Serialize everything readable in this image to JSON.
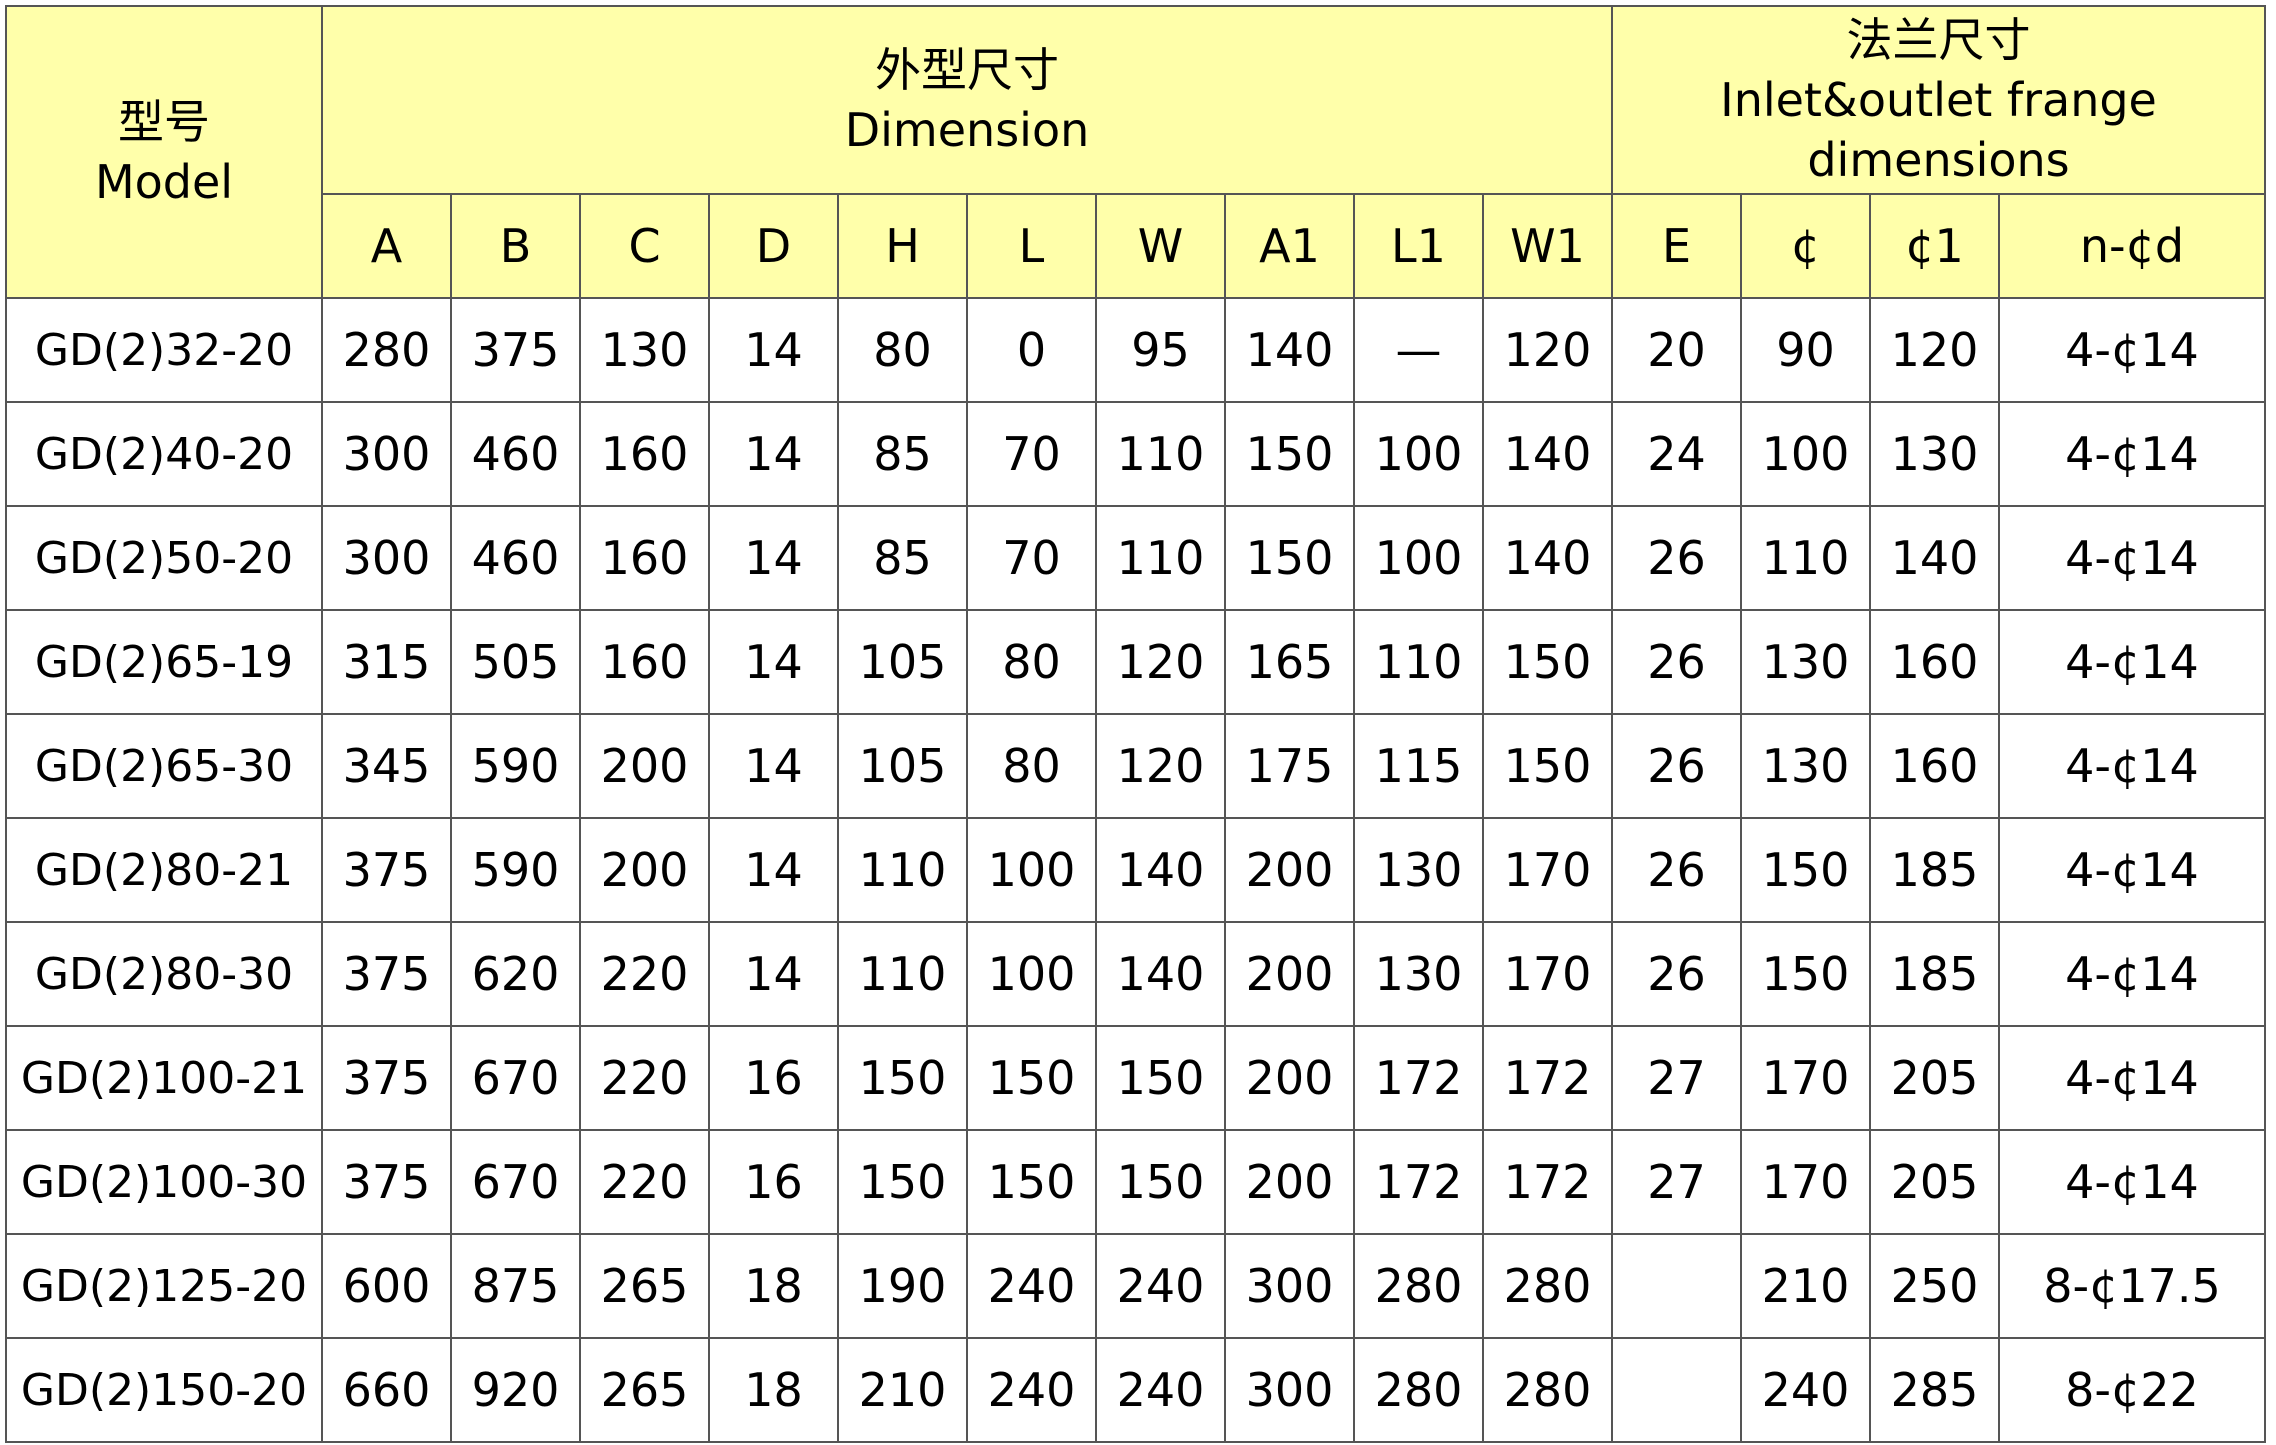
{
  "header": {
    "model_cn": "型号",
    "model_en": "Model",
    "dimension_cn": "外型尺寸",
    "dimension_en": "Dimension",
    "flange_cn": "法兰尺寸",
    "flange_en_1": "Inlet&outlet frange",
    "flange_en_2": "dimensions",
    "columns": [
      "A",
      "B",
      "C",
      "D",
      "H",
      "L",
      "W",
      "A1",
      "L1",
      "W1",
      "E",
      "¢",
      "¢1",
      "n-¢d"
    ]
  },
  "colors": {
    "header_bg": "#FFFFAA",
    "border": "#555555"
  },
  "rows": [
    [
      "GD(2)32-20",
      "280",
      "375",
      "130",
      "14",
      "80",
      "0",
      "95",
      "140",
      "—",
      "120",
      "20",
      "90",
      "120",
      "4-¢14"
    ],
    [
      "GD(2)40-20",
      "300",
      "460",
      "160",
      "14",
      "85",
      "70",
      "110",
      "150",
      "100",
      "140",
      "24",
      "100",
      "130",
      "4-¢14"
    ],
    [
      "GD(2)50-20",
      "300",
      "460",
      "160",
      "14",
      "85",
      "70",
      "110",
      "150",
      "100",
      "140",
      "26",
      "110",
      "140",
      "4-¢14"
    ],
    [
      "GD(2)65-19",
      "315",
      "505",
      "160",
      "14",
      "105",
      "80",
      "120",
      "165",
      "110",
      "150",
      "26",
      "130",
      "160",
      "4-¢14"
    ],
    [
      "GD(2)65-30",
      "345",
      "590",
      "200",
      "14",
      "105",
      "80",
      "120",
      "175",
      "115",
      "150",
      "26",
      "130",
      "160",
      "4-¢14"
    ],
    [
      "GD(2)80-21",
      "375",
      "590",
      "200",
      "14",
      "110",
      "100",
      "140",
      "200",
      "130",
      "170",
      "26",
      "150",
      "185",
      "4-¢14"
    ],
    [
      "GD(2)80-30",
      "375",
      "620",
      "220",
      "14",
      "110",
      "100",
      "140",
      "200",
      "130",
      "170",
      "26",
      "150",
      "185",
      "4-¢14"
    ],
    [
      "GD(2)100-21",
      "375",
      "670",
      "220",
      "16",
      "150",
      "150",
      "150",
      "200",
      "172",
      "172",
      "27",
      "170",
      "205",
      "4-¢14"
    ],
    [
      "GD(2)100-30",
      "375",
      "670",
      "220",
      "16",
      "150",
      "150",
      "150",
      "200",
      "172",
      "172",
      "27",
      "170",
      "205",
      "4-¢14"
    ],
    [
      "GD(2)125-20",
      "600",
      "875",
      "265",
      "18",
      "190",
      "240",
      "240",
      "300",
      "280",
      "280",
      "",
      "210",
      "250",
      "8-¢17.5"
    ],
    [
      "GD(2)150-20",
      "660",
      "920",
      "265",
      "18",
      "210",
      "240",
      "240",
      "300",
      "280",
      "280",
      "",
      "240",
      "285",
      "8-¢22"
    ]
  ]
}
